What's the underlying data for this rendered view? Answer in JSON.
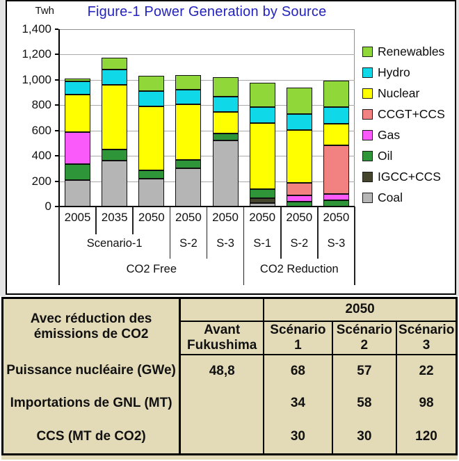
{
  "chart_data": {
    "type": "bar",
    "stacked": true,
    "title": "Figure-1 Power Generation by Source",
    "title_color": "#2323bd",
    "ylabel": "Twh",
    "ylim": [
      0,
      1400
    ],
    "ytick_step": 200,
    "grid": true,
    "legend_position": "right",
    "categories": [
      "2005",
      "2035",
      "2050",
      "2050",
      "2050",
      "2050",
      "2050",
      "2050"
    ],
    "group_rows": [
      {
        "cells": [
          {
            "label": "Scenario-1",
            "span": 3
          },
          {
            "label": "S-2",
            "span": 1
          },
          {
            "label": "S-3",
            "span": 1
          },
          {
            "label": "S-1",
            "span": 1
          },
          {
            "label": "S-2",
            "span": 1
          },
          {
            "label": "S-3",
            "span": 1
          }
        ]
      },
      {
        "cells": [
          {
            "label": "CO2 Free",
            "span": 5
          },
          {
            "label": "CO2 Reduction",
            "span": 3
          }
        ]
      }
    ],
    "series": [
      {
        "name": "Coal",
        "color": "#b5b5b5",
        "values": [
          210,
          365,
          220,
          300,
          520,
          25,
          0,
          0
        ]
      },
      {
        "name": "IGCC+CCS",
        "color": "#45452e",
        "values": [
          0,
          0,
          0,
          0,
          0,
          40,
          0,
          0
        ]
      },
      {
        "name": "Oil",
        "color": "#2e9639",
        "values": [
          125,
          85,
          65,
          70,
          55,
          70,
          40,
          50
        ]
      },
      {
        "name": "Gas",
        "color": "#f95af9",
        "values": [
          250,
          0,
          0,
          0,
          0,
          0,
          50,
          50
        ]
      },
      {
        "name": "CCGT+CCS",
        "color": "#f28181",
        "values": [
          0,
          0,
          0,
          0,
          0,
          0,
          95,
          385
        ]
      },
      {
        "name": "Nuclear",
        "color": "#ffff00",
        "values": [
          300,
          510,
          505,
          435,
          170,
          525,
          420,
          170
        ]
      },
      {
        "name": "Hydro",
        "color": "#0fd8e8",
        "values": [
          105,
          120,
          120,
          115,
          120,
          125,
          125,
          130
        ]
      },
      {
        "name": "Renewables",
        "color": "#90d83a",
        "values": [
          20,
          95,
          120,
          115,
          155,
          190,
          210,
          210
        ]
      }
    ],
    "legend_order_top_to_bottom": [
      "Renewables",
      "Hydro",
      "Nuclear",
      "CCGT+CCS",
      "Gas",
      "Oil",
      "IGCC+CCS",
      "Coal"
    ]
  },
  "table": {
    "bg_color": "#e3dab8",
    "header": {
      "corner": "Avec réduction des émissions de CO2",
      "year": "2050",
      "avant": "Avant Fukushima",
      "scenarios": [
        "Scénario 1",
        "Scénario 2",
        "Scénario 3"
      ]
    },
    "rows": [
      {
        "label": "Puissance nucléaire (GWe)",
        "avant": "48,8",
        "s1": "68",
        "s2": "57",
        "s3": "22"
      },
      {
        "label": "Importations de GNL (MT)",
        "avant": "",
        "s1": "34",
        "s2": "58",
        "s3": "98"
      },
      {
        "label": "CCS (MT de CO2)",
        "avant": "",
        "s1": "30",
        "s2": "30",
        "s3": "120"
      }
    ]
  }
}
